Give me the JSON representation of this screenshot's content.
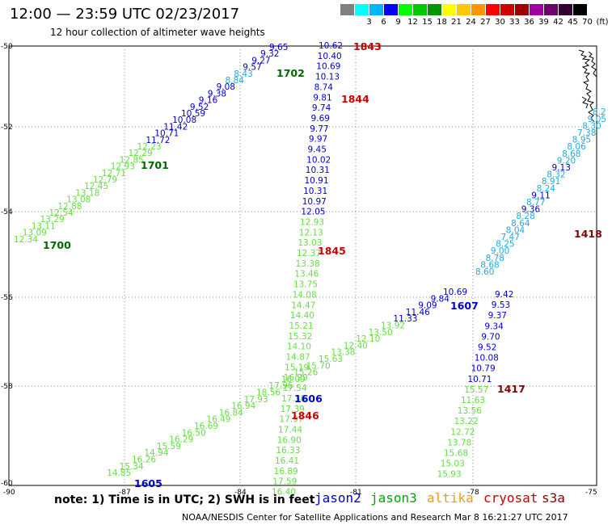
{
  "header": {
    "title": "12:00 — 23:59 UTC 02/23/2017",
    "subtitle": "12 hour collection of altimeter wave heights"
  },
  "scale": {
    "unit": "(ft)",
    "swatches": [
      {
        "label": "",
        "color": "#808080"
      },
      {
        "label": "3",
        "color": "#00ffff"
      },
      {
        "label": "6",
        "color": "#00b4ff"
      },
      {
        "label": "9",
        "color": "#0000ff"
      },
      {
        "label": "12",
        "color": "#00ff00"
      },
      {
        "label": "15",
        "color": "#00c800"
      },
      {
        "label": "18",
        "color": "#009600"
      },
      {
        "label": "21",
        "color": "#ffff00"
      },
      {
        "label": "24",
        "color": "#ffc800"
      },
      {
        "label": "27",
        "color": "#ff9600"
      },
      {
        "label": "30",
        "color": "#ff0000"
      },
      {
        "label": "33",
        "color": "#d20000"
      },
      {
        "label": "36",
        "color": "#a00000"
      },
      {
        "label": "39",
        "color": "#a000a0"
      },
      {
        "label": "42",
        "color": "#6e006e"
      },
      {
        "label": "45",
        "color": "#320032"
      },
      {
        "label": "70",
        "color": "#000000"
      }
    ]
  },
  "axes": {
    "lat_labels": [
      "-50",
      "-52",
      "-54",
      "-56",
      "-58",
      "-60"
    ],
    "lon_labels": [
      "-90",
      "-87",
      "-84",
      "-81",
      "-78",
      "-75"
    ]
  },
  "colors": {
    "jason2": "#0000cc",
    "jason3": "#00aa00",
    "altika": "#ff9900",
    "cryosat": "#cc0000",
    "s3a": "#880000",
    "light_blue": "#22aadd",
    "light_green": "#66dd44",
    "dark_green": "#006600"
  },
  "track_labels": [
    {
      "text": "1843",
      "color": "#cc0000"
    },
    {
      "text": "1844",
      "color": "#cc0000"
    },
    {
      "text": "1845",
      "color": "#cc0000"
    },
    {
      "text": "1846",
      "color": "#cc0000"
    },
    {
      "text": "1702",
      "color": "#006600"
    },
    {
      "text": "1701",
      "color": "#006600"
    },
    {
      "text": "1700",
      "color": "#006600"
    },
    {
      "text": "1607",
      "color": "#0000cc"
    },
    {
      "text": "1606",
      "color": "#0000cc"
    },
    {
      "text": "1605",
      "color": "#0000cc"
    },
    {
      "text": "1417",
      "color": "#880000"
    },
    {
      "text": "1418",
      "color": "#880000"
    }
  ],
  "track_1843_1846": [
    "10.62",
    "10.40",
    "10.69",
    "10.13",
    "8.74",
    "9.81",
    "9.74",
    "9.69",
    "9.77",
    "9.97",
    "9.45",
    "10.02",
    "10.31",
    "10.91",
    "10.31",
    "10.97",
    "12.05",
    "12.93",
    "12.13",
    "13.03",
    "12.37",
    "13.38",
    "13.46",
    "13.75",
    "14.08",
    "14.47",
    "14.40",
    "15.21",
    "15.32",
    "14.10",
    "14.87",
    "15.19",
    "16.29",
    "17.54",
    "17.38",
    "17.39",
    "17.97",
    "17.44",
    "16.90",
    "16.33",
    "16.41",
    "16.89",
    "17.59",
    "16.40"
  ],
  "track_1700_1702": [
    "9.65",
    "9.32",
    "9.27",
    "9.57",
    "8.43",
    "8.84",
    "9.08",
    "9.38",
    "9.16",
    "9.52",
    "10.59",
    "10.08",
    "11.42",
    "10.71",
    "11.72",
    "12.23",
    "12.29",
    "12.85",
    "12.93",
    "12.71",
    "12.79",
    "12.45",
    "13.18",
    "13.08",
    "12.88",
    "12.54",
    "13.29",
    "13.11",
    "13.09",
    "12.34"
  ],
  "track_1605_1607": [
    "10.69",
    "9.84",
    "9.09",
    "11.46",
    "11.33",
    "13.92",
    "13.50",
    "12.10",
    "12.40",
    "13.38",
    "15.63",
    "15.70",
    "15.26",
    "16.09",
    "17.96",
    "18.56",
    "17.93",
    "16.94",
    "16.84",
    "16.49",
    "16.69",
    "16.50",
    "16.29",
    "15.59",
    "14.94",
    "16.26",
    "15.34",
    "14.85"
  ],
  "track_1417_1418": [
    "9.42",
    "9.53",
    "9.37",
    "9.34",
    "9.70",
    "9.52",
    "10.08",
    "10.79",
    "10.71",
    "15.57",
    "11.63",
    "13.56",
    "13.22",
    "12.72",
    "13.78",
    "15.68",
    "15.03",
    "15.93"
  ],
  "track_ne": [
    "8.60",
    "8.68",
    "8.78",
    "9.00",
    "8.25",
    "7.47",
    "8.04",
    "8.64",
    "8.28",
    "9.36",
    "8.77",
    "9.11",
    "8.24",
    "8.91",
    "8.32",
    "9.13",
    "9.20",
    "8.68",
    "8.06",
    "8.95",
    "7.38",
    "8.30",
    "9.05",
    "8.2"
  ],
  "footer": {
    "note": "note: 1) Time is in UTC; 2) SWH is in feet",
    "legend": [
      {
        "label": "jason2",
        "color": "#0000cc"
      },
      {
        "label": "jason3",
        "color": "#00aa00"
      },
      {
        "label": "altika",
        "color": "#ff9900"
      },
      {
        "label": "cryosat",
        "color": "#cc0000"
      },
      {
        "label": "s3a",
        "color": "#880000"
      }
    ],
    "credit": "NOAA/NESDIS Center for Satellite Applications and Research    Mar  8 16:21:27 UTC 2017"
  }
}
